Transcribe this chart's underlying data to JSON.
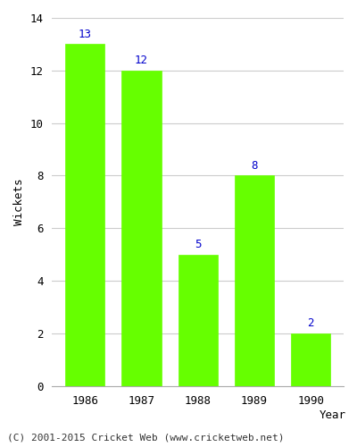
{
  "years": [
    "1986",
    "1987",
    "1988",
    "1989",
    "1990"
  ],
  "values": [
    13,
    12,
    5,
    8,
    2
  ],
  "bar_color": "#66ff00",
  "bar_edge_color": "#66ff00",
  "label_color": "#0000cc",
  "xlabel": "Year",
  "ylabel": "Wickets",
  "ylim": [
    0,
    14
  ],
  "yticks": [
    0,
    2,
    4,
    6,
    8,
    10,
    12,
    14
  ],
  "grid_color": "#cccccc",
  "background_color": "#ffffff",
  "footer_text": "(C) 2001-2015 Cricket Web (www.cricketweb.net)",
  "label_fontsize": 9,
  "axis_label_fontsize": 9,
  "tick_fontsize": 9,
  "footer_fontsize": 8
}
